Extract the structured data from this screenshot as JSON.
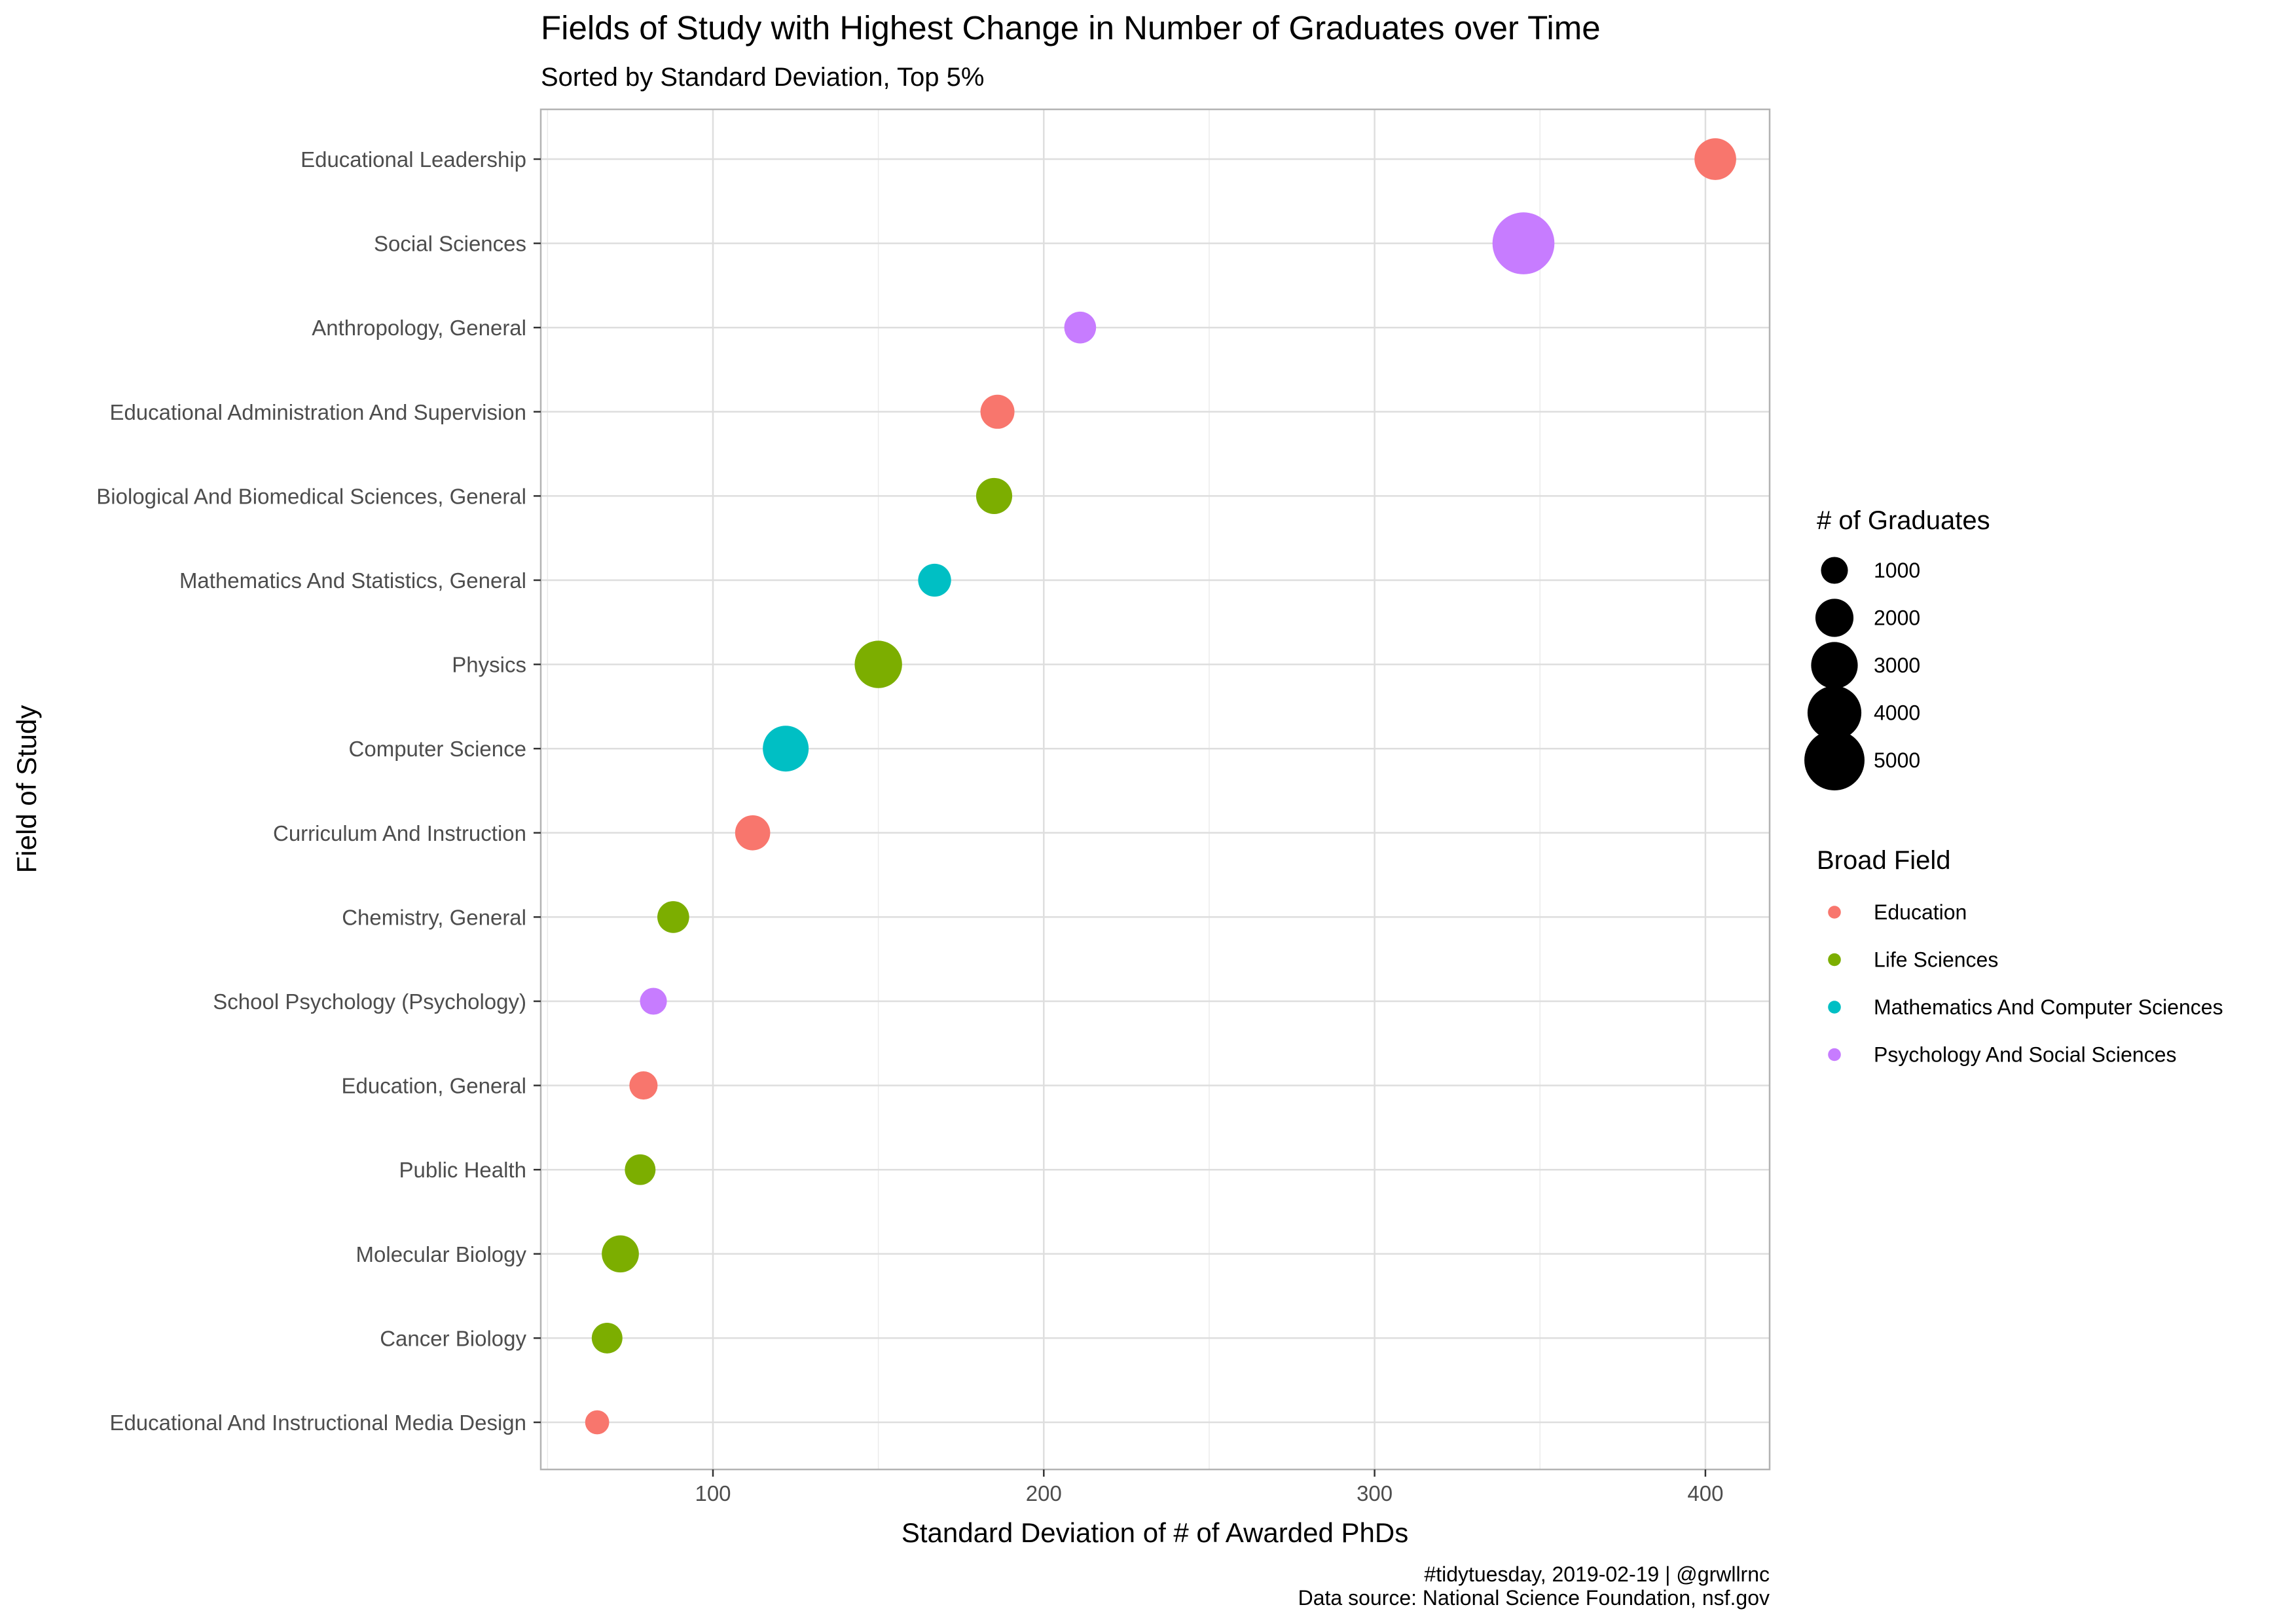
{
  "chart_data": {
    "type": "scatter",
    "title": "Fields of Study with Highest Change in Number of Graduates over Time",
    "subtitle": "Sorted by Standard Deviation, Top 5%",
    "xlabel": "Standard Deviation of # of Awarded PhDs",
    "ylabel": "Field of Study",
    "xlim": [
      48,
      420
    ],
    "x_ticks": [
      100,
      200,
      300,
      400
    ],
    "grid": true,
    "categories": [
      "Educational Leadership",
      "Social Sciences",
      "Anthropology, General",
      "Educational Administration And Supervision",
      "Biological And Biomedical Sciences, General",
      "Mathematics And Statistics, General",
      "Physics",
      "Computer Science",
      "Curriculum And Instruction",
      "Chemistry, General",
      "School Psychology (Psychology)",
      "Education, General",
      "Public Health",
      "Molecular Biology",
      "Cancer Biology",
      "Educational And Instructional Media Design"
    ],
    "points": [
      {
        "field": "Educational Leadership",
        "x": 403,
        "size": 2400,
        "broad_field": "Education"
      },
      {
        "field": "Social Sciences",
        "x": 345,
        "size": 5300,
        "broad_field": "Psychology And Social Sciences"
      },
      {
        "field": "Anthropology, General",
        "x": 211,
        "size": 1400,
        "broad_field": "Psychology And Social Sciences"
      },
      {
        "field": "Educational Administration And Supervision",
        "x": 186,
        "size": 1600,
        "broad_field": "Education"
      },
      {
        "field": "Biological And Biomedical Sciences, General",
        "x": 185,
        "size": 1800,
        "broad_field": "Life Sciences"
      },
      {
        "field": "Mathematics And Statistics, General",
        "x": 167,
        "size": 1500,
        "broad_field": "Mathematics And Computer Sciences"
      },
      {
        "field": "Physics",
        "x": 150,
        "size": 3100,
        "broad_field": "Life Sciences"
      },
      {
        "field": "Computer Science",
        "x": 122,
        "size": 2900,
        "broad_field": "Mathematics And Computer Sciences"
      },
      {
        "field": "Curriculum And Instruction",
        "x": 112,
        "size": 1700,
        "broad_field": "Education"
      },
      {
        "field": "Chemistry, General",
        "x": 88,
        "size": 1400,
        "broad_field": "Life Sciences"
      },
      {
        "field": "School Psychology (Psychology)",
        "x": 82,
        "size": 1000,
        "broad_field": "Psychology And Social Sciences"
      },
      {
        "field": "Education, General",
        "x": 79,
        "size": 1100,
        "broad_field": "Education"
      },
      {
        "field": "Public Health",
        "x": 78,
        "size": 1300,
        "broad_field": "Life Sciences"
      },
      {
        "field": "Molecular Biology",
        "x": 72,
        "size": 1900,
        "broad_field": "Life Sciences"
      },
      {
        "field": "Cancer Biology",
        "x": 68,
        "size": 1300,
        "broad_field": "Life Sciences"
      },
      {
        "field": "Educational And Instructional Media Design",
        "x": 65,
        "size": 800,
        "broad_field": "Education"
      }
    ],
    "size_legend": {
      "title": "# of Graduates",
      "values": [
        1000,
        2000,
        3000,
        4000,
        5000
      ]
    },
    "color_legend": {
      "title": "Broad Field",
      "entries": [
        {
          "name": "Education",
          "color": "#F8766D"
        },
        {
          "name": "Life Sciences",
          "color": "#7CAE00"
        },
        {
          "name": "Mathematics And Computer Sciences",
          "color": "#00BFC4"
        },
        {
          "name": "Psychology And Social Sciences",
          "color": "#C77CFF"
        }
      ]
    },
    "caption_lines": [
      "#tidytuesday, 2019-02-19 | @grwllrnc",
      "Data source: National Science Foundation, nsf.gov"
    ]
  }
}
